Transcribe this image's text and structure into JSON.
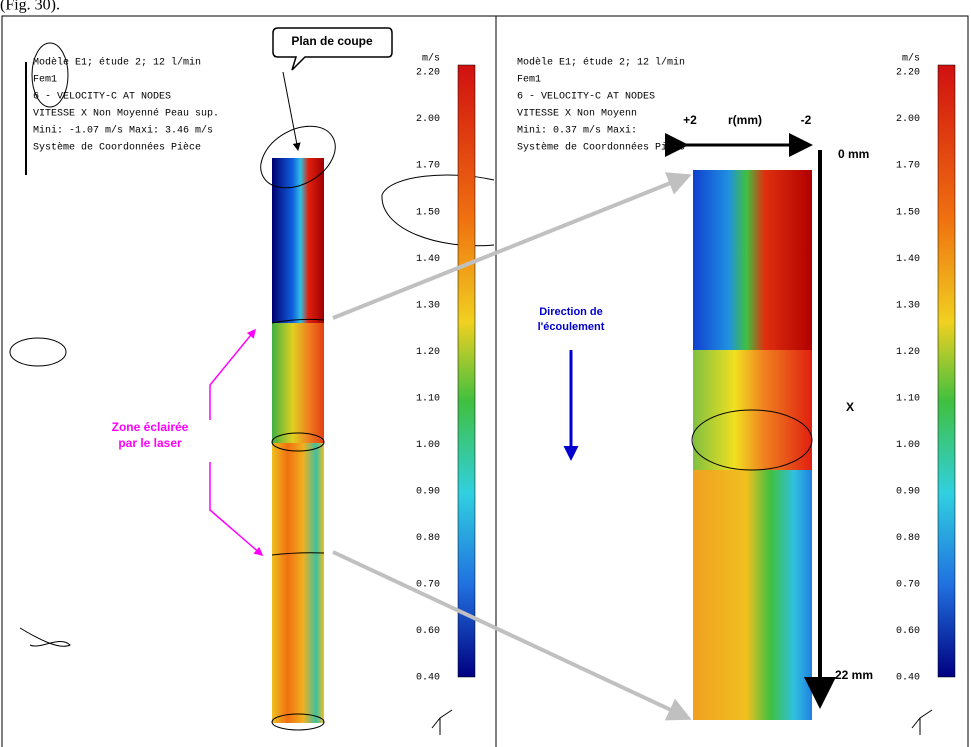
{
  "caption": "(Fig. 30).",
  "left_panel": {
    "header": [
      "Modèle E1; étude 2; 12 l/min",
      "Fem1",
      "6 - VELOCITY-C AT NODES",
      "VITESSE  X  Non Moyenné  Peau sup.",
      "Mini: -1.07 m/s  Maxi: 3.46 m/s",
      "Système de Coordonnées Pièce"
    ],
    "unit": "m/s",
    "scale": [
      "2.20",
      "2.00",
      "1.70",
      "1.50",
      "1.40",
      "1.30",
      "1.20",
      "1.10",
      "1.00",
      "0.90",
      "0.80",
      "0.70",
      "0.60",
      "0.40"
    ],
    "callout": "Plan de coupe",
    "zone_label": [
      "Zone éclairée",
      "par le laser"
    ]
  },
  "right_panel": {
    "header": [
      "Modèle E1; étude 2; 12 l/min",
      "Fem1",
      "6 - VELOCITY-C AT NODES",
      "VITESSE  X  Non Moyenn",
      "Mini: 0.37 m/s  Maxi:",
      "Système de Coordonnées Pièce"
    ],
    "unit": "m/s",
    "scale": [
      "2.20",
      "2.00",
      "1.70",
      "1.50",
      "1.40",
      "1.30",
      "1.20",
      "1.10",
      "1.00",
      "0.90",
      "0.80",
      "0.70",
      "0.60",
      "0.40"
    ],
    "radius_labels": [
      "+2",
      "r(mm)",
      "-2"
    ],
    "flow_label": [
      "Direction de",
      "l'écoulement"
    ],
    "axis_start": "0 mm",
    "axis_name": "X",
    "axis_end": "22 mm"
  }
}
